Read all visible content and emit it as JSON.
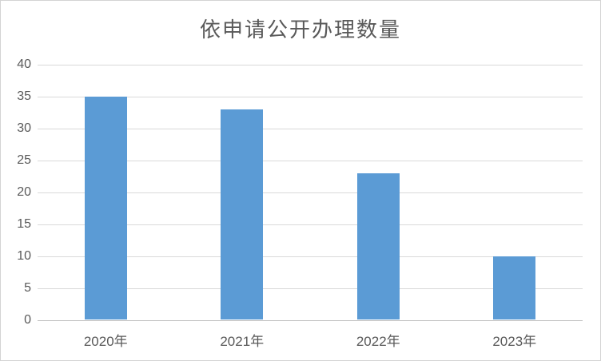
{
  "chart_data": {
    "type": "bar",
    "title": "依申请公开办理数量",
    "categories": [
      "2020年",
      "2021年",
      "2022年",
      "2023年"
    ],
    "values": [
      35,
      33,
      23,
      10
    ],
    "xlabel": "",
    "ylabel": "",
    "ylim": [
      0,
      40
    ],
    "ytick_step": 5,
    "grid": true,
    "legend": "none",
    "colors": {
      "bar": "#5B9BD5",
      "gridline": "#D9D9D9",
      "axis_line": "#BFBFBF",
      "text": "#595959",
      "frame_border": "#D3D3D3",
      "background": "#FFFFFF"
    }
  }
}
